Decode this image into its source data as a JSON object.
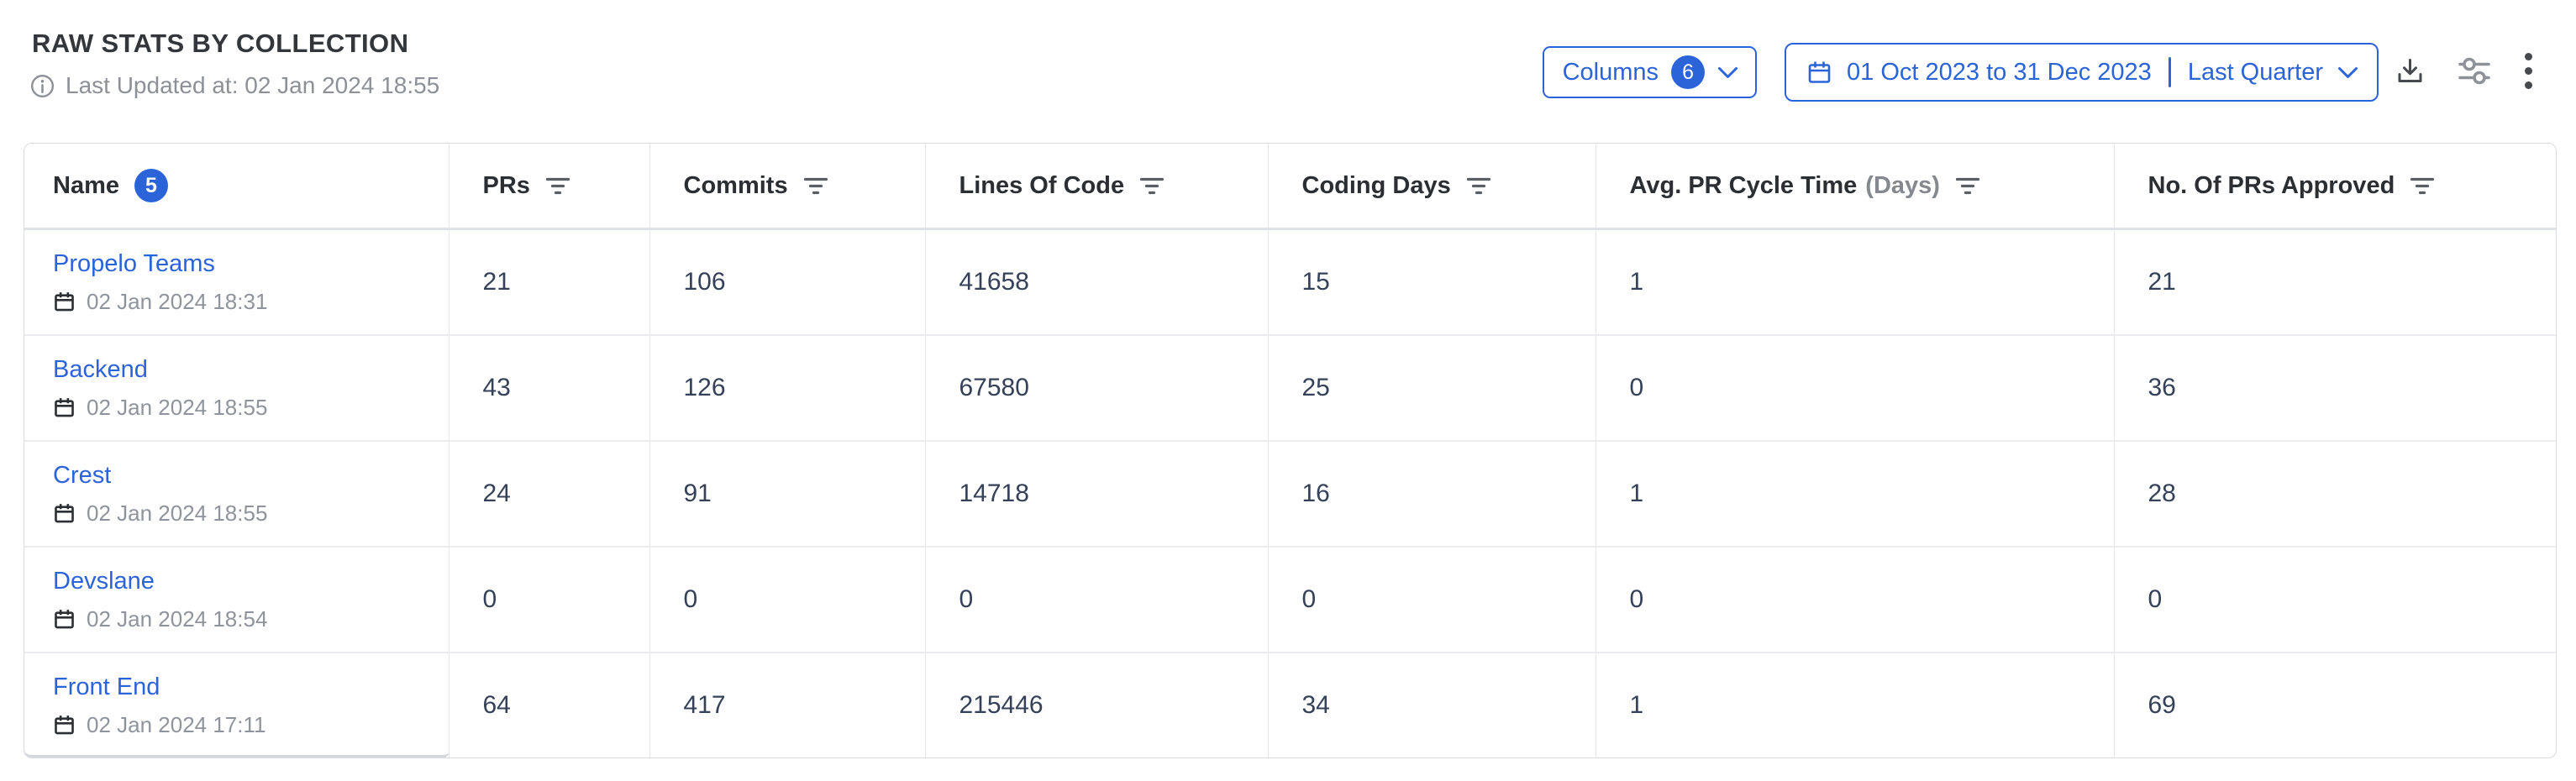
{
  "header": {
    "title": "RAW STATS BY COLLECTION",
    "last_updated": "Last Updated at: 02 Jan 2024 18:55"
  },
  "toolbar": {
    "columns_label": "Columns",
    "columns_count": "6",
    "date_range": "01 Oct 2023 to 31 Dec 2023",
    "date_preset": "Last Quarter"
  },
  "colors": {
    "accent_blue": "#2b63d9",
    "number_text": "#344159",
    "muted_text": "#8d9197"
  },
  "table": {
    "columns": [
      {
        "label": "Name",
        "badge": "5"
      },
      {
        "label": "PRs",
        "filter": true
      },
      {
        "label": "Commits",
        "filter": true
      },
      {
        "label": "Lines Of Code",
        "filter": true
      },
      {
        "label": "Coding Days",
        "filter": true
      },
      {
        "label": "Avg. PR Cycle Time",
        "suffix": "(Days)",
        "filter": true
      },
      {
        "label": "No. Of PRs Approved",
        "filter": true
      }
    ],
    "rows": [
      {
        "name": "Propelo Teams",
        "updated": "02 Jan 2024 18:31",
        "values": [
          "21",
          "106",
          "41658",
          "15",
          "1",
          "21"
        ]
      },
      {
        "name": "Backend",
        "updated": "02 Jan 2024 18:55",
        "values": [
          "43",
          "126",
          "67580",
          "25",
          "0",
          "36"
        ]
      },
      {
        "name": "Crest",
        "updated": "02 Jan 2024 18:55",
        "values": [
          "24",
          "91",
          "14718",
          "16",
          "1",
          "28"
        ]
      },
      {
        "name": "Devslane",
        "updated": "02 Jan 2024 18:54",
        "values": [
          "0",
          "0",
          "0",
          "0",
          "0",
          "0"
        ]
      },
      {
        "name": "Front End",
        "updated": "02 Jan 2024 17:11",
        "values": [
          "64",
          "417",
          "215446",
          "34",
          "1",
          "69"
        ]
      }
    ]
  }
}
